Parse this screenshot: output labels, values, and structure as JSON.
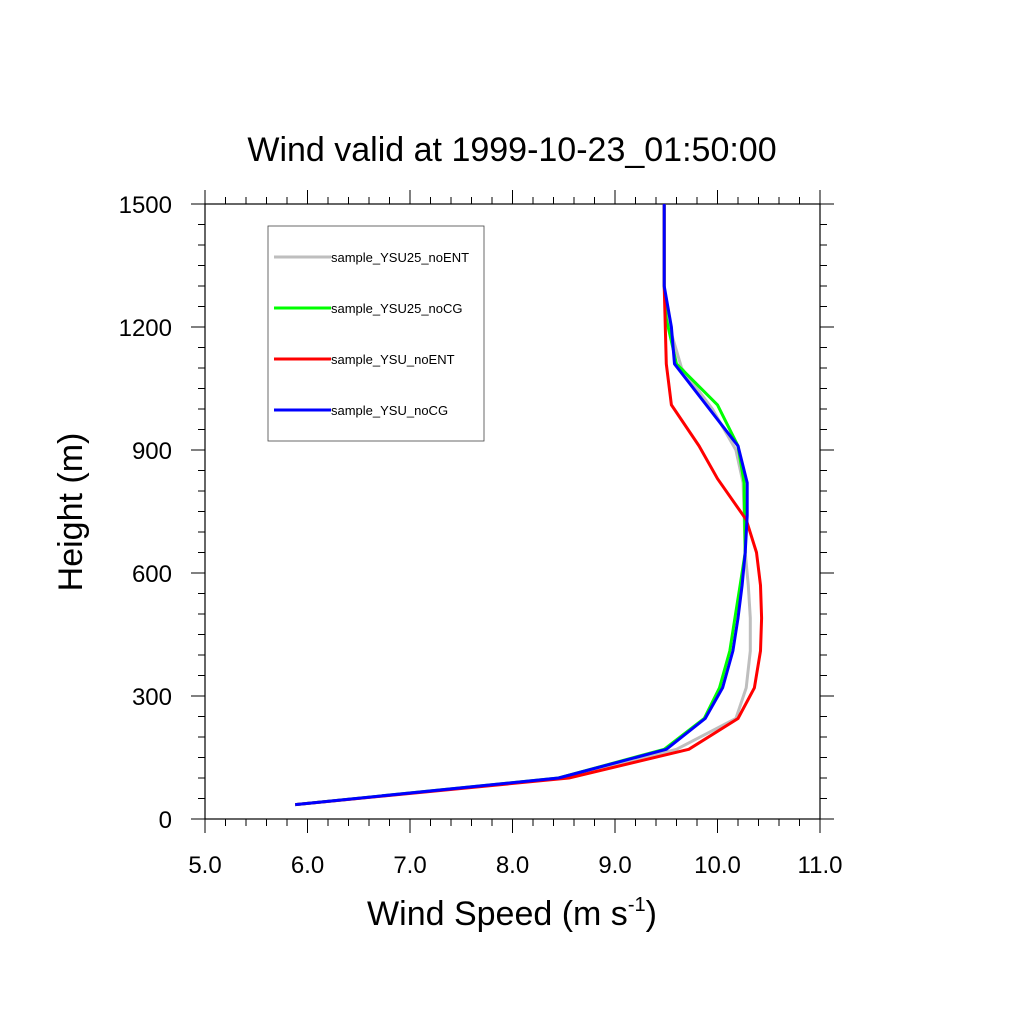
{
  "chart_data": {
    "type": "line",
    "title": "Wind valid at 1999-10-23_01:50:00",
    "xlabel_main": "Wind Speed (m s",
    "xlabel_sup": "-1",
    "xlabel_tail": ")",
    "ylabel": "Height (m)",
    "xlim": [
      5.0,
      11.0
    ],
    "ylim": [
      0,
      1500
    ],
    "x_ticks": [
      5.0,
      6.0,
      7.0,
      8.0,
      9.0,
      10.0,
      11.0
    ],
    "x_tick_labels": [
      "5.0",
      "6.0",
      "7.0",
      "8.0",
      "9.0",
      "10.0",
      "11.0"
    ],
    "y_ticks": [
      0,
      300,
      600,
      900,
      1200,
      1500
    ],
    "y_tick_labels": [
      "0",
      "300",
      "600",
      "900",
      "1200",
      "1500"
    ],
    "grid": false,
    "legend_position": "top-left",
    "series": [
      {
        "name": "sample_YSU25_noENT",
        "color": "#bebebe",
        "x": [
          5.88,
          8.5,
          9.6,
          10.18,
          10.28,
          10.32,
          10.32,
          10.3,
          10.27,
          10.25,
          10.18,
          9.95,
          9.65,
          9.52,
          9.48,
          9.48
        ],
        "y": [
          35,
          100,
          170,
          245,
          320,
          410,
          490,
          570,
          650,
          820,
          900,
          1000,
          1100,
          1210,
          1300,
          1500
        ]
      },
      {
        "name": "sample_YSU25_noCG",
        "color": "#00ff00",
        "x": [
          5.88,
          8.45,
          9.48,
          9.87,
          10.02,
          10.12,
          10.17,
          10.22,
          10.27,
          10.26,
          10.2,
          10.0,
          9.6,
          9.5,
          9.48,
          9.48
        ],
        "y": [
          35,
          100,
          170,
          245,
          320,
          410,
          490,
          570,
          650,
          820,
          910,
          1010,
          1110,
          1220,
          1300,
          1500
        ]
      },
      {
        "name": "sample_YSU_noENT",
        "color": "#ff0000",
        "x": [
          5.88,
          8.55,
          9.72,
          10.2,
          10.36,
          10.42,
          10.43,
          10.42,
          10.38,
          10.28,
          10.0,
          9.82,
          9.55,
          9.5,
          9.48,
          9.48
        ],
        "y": [
          35,
          100,
          170,
          245,
          320,
          410,
          490,
          570,
          650,
          730,
          830,
          910,
          1010,
          1110,
          1300,
          1500
        ]
      },
      {
        "name": "sample_YSU_noCG",
        "color": "#0000ff",
        "x": [
          5.88,
          8.45,
          9.5,
          9.88,
          10.05,
          10.15,
          10.2,
          10.24,
          10.27,
          10.29,
          10.29,
          10.2,
          9.58,
          9.55,
          9.48,
          9.48
        ],
        "y": [
          35,
          100,
          170,
          245,
          320,
          410,
          490,
          570,
          650,
          740,
          820,
          910,
          1110,
          1200,
          1300,
          1500
        ]
      }
    ]
  }
}
